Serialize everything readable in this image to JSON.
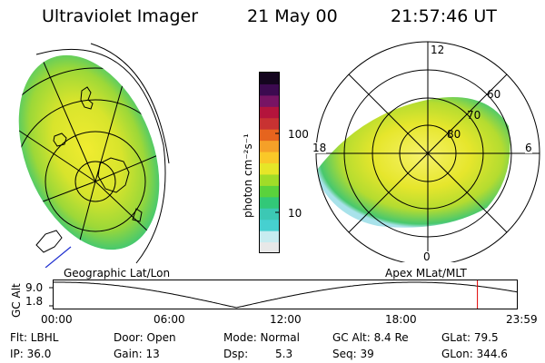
{
  "header": {
    "instrument": "Ultraviolet Imager",
    "date": "21 May 00",
    "time": "21:57:46 UT"
  },
  "colorbar": {
    "unit_label": "photon cm⁻²s⁻¹",
    "ticks": [
      "100",
      "10"
    ],
    "colors": [
      "#e8e8e8",
      "#c8ecf0",
      "#46d0d0",
      "#3cc8b4",
      "#32c878",
      "#5ad23c",
      "#a0dc28",
      "#e6e628",
      "#fac828",
      "#f5a028",
      "#e6641e",
      "#c83232",
      "#b4143c",
      "#781464",
      "#3c0a50",
      "#14051e"
    ]
  },
  "left_map": {
    "caption": "Geographic Lat/Lon"
  },
  "right_map": {
    "caption": "Apex MLat/MLT",
    "lat_labels": [
      "60",
      "70",
      "80"
    ],
    "mlt_labels": {
      "top": "12",
      "left": "18",
      "right": "6",
      "bottom": "0"
    }
  },
  "timeline": {
    "axis_label": "GC Alt",
    "y_ticks": [
      "9.0",
      "1.8"
    ],
    "x_ticks": [
      "00:00",
      "06:00",
      "12:00",
      "18:00",
      "23:59"
    ],
    "current_hour": 21.96,
    "marker_color": "#e00000"
  },
  "info": {
    "row1": [
      "Flt: LBHL",
      "Door: Open",
      "Mode: Normal",
      "GC Alt: 8.4 Re",
      "GLat: 79.5"
    ],
    "row2": [
      "IP: 36.0",
      "Gain: 13",
      "Dsp:",
      "5.3",
      "Seq: 39",
      "GLon: 344.6"
    ]
  }
}
